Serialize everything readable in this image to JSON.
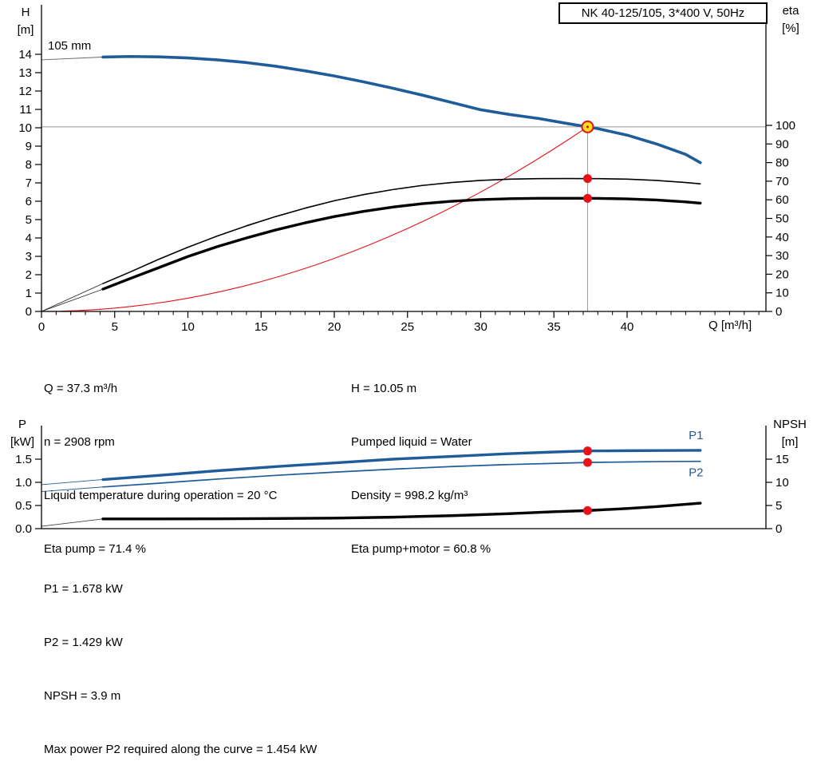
{
  "title_box": "NK 40-125/105, 3*400 V, 50Hz",
  "colors": {
    "curve_blue": "#1f5c99",
    "curve_black": "#000000",
    "marker_red": "#e8111a",
    "duty_yellow": "#ffe01a",
    "crosshair_gray": "#999999"
  },
  "axis_labels": {
    "h": [
      "H",
      "[m]"
    ],
    "eta": [
      "eta",
      "[%]"
    ],
    "q": "Q [m³/h]",
    "p": [
      "P",
      "[kW]"
    ],
    "npsh": [
      "NPSH",
      "[m]"
    ]
  },
  "info_top": {
    "left": [
      "Q = 37.3 m³/h",
      "n = 2908 rpm",
      "Liquid temperature during operation = 20 °C",
      "Eta pump = 71.4 %"
    ],
    "right": [
      "H = 10.05 m",
      "Pumped liquid = Water",
      "Density = 998.2 kg/m³",
      "Eta pump+motor = 60.8 %"
    ]
  },
  "info_bottom": [
    "P1 = 1.678 kW",
    "P2 = 1.429 kW",
    "NPSH = 3.9 m",
    "Max power P2 required along the curve = 1.454 kW"
  ],
  "chart_data": [
    {
      "type": "line",
      "name": "pump-performance-chart",
      "title": "NK 40-125/105, 3*400 V, 50Hz",
      "impeller_label": "105 mm",
      "x_axis": {
        "label": "Q [m³/h]",
        "min": 0,
        "max": 49.5,
        "major_ticks": [
          0,
          5,
          10,
          15,
          20,
          25,
          30,
          35,
          40
        ],
        "minor_step": 1
      },
      "y_left": {
        "label": "H [m]",
        "min": 0,
        "max": 16.7,
        "ticks": [
          0,
          1,
          2,
          3,
          4,
          5,
          6,
          7,
          8,
          9,
          10,
          11,
          12,
          13,
          14
        ]
      },
      "y_right": {
        "label": "eta [%]",
        "min": 0,
        "max": 100,
        "ticks": [
          0,
          10,
          20,
          30,
          40,
          50,
          60,
          70,
          80,
          90,
          100
        ]
      },
      "duty_point": {
        "q": 37.3,
        "h": 10.05,
        "show_parabola": true
      },
      "series": [
        {
          "name": "head-curve-extension",
          "axis": "left",
          "color": "#666666",
          "width": 0.9,
          "x": [
            0,
            4.2
          ],
          "y": [
            13.7,
            13.85
          ]
        },
        {
          "name": "eta-pump-extension",
          "axis": "right",
          "color": "#333333",
          "width": 0.9,
          "x": [
            0,
            4.2
          ],
          "y": [
            0,
            15
          ]
        },
        {
          "name": "eta-pump-motor-extension",
          "axis": "right",
          "color": "#333333",
          "width": 0.9,
          "x": [
            0,
            4.2
          ],
          "y": [
            0,
            12
          ]
        },
        {
          "name": "head-curve",
          "axis": "left",
          "color": "#1f5c99",
          "width": 3.6,
          "x": [
            4.2,
            6,
            8,
            10,
            12,
            14,
            16,
            18,
            20,
            22,
            24,
            26,
            28,
            30,
            32,
            34,
            36,
            37.3,
            38,
            40,
            42,
            44,
            45
          ],
          "y": [
            13.85,
            13.88,
            13.86,
            13.8,
            13.7,
            13.55,
            13.35,
            13.1,
            12.82,
            12.5,
            12.15,
            11.78,
            11.38,
            10.98,
            10.72,
            10.5,
            10.22,
            10.05,
            9.95,
            9.6,
            9.12,
            8.55,
            8.1
          ]
        },
        {
          "name": "eta-pump-curve",
          "axis": "right",
          "color": "#000000",
          "width": 1.6,
          "x": [
            4.2,
            6,
            8,
            10,
            12,
            14,
            16,
            18,
            20,
            22,
            24,
            26,
            28,
            30,
            32,
            34,
            36,
            37.3,
            38,
            40,
            42,
            44,
            45
          ],
          "y": [
            15,
            21,
            28,
            34.5,
            40.5,
            46,
            51,
            55.5,
            59.5,
            62.8,
            65.5,
            67.7,
            69.3,
            70.4,
            71.1,
            71.4,
            71.45,
            71.4,
            71.38,
            71.1,
            70.4,
            69.3,
            68.6
          ]
        },
        {
          "name": "eta-pump-motor-curve",
          "axis": "right",
          "color": "#000000",
          "width": 3.4,
          "x": [
            4.2,
            6,
            8,
            10,
            12,
            14,
            16,
            18,
            20,
            22,
            24,
            26,
            28,
            30,
            32,
            34,
            36,
            37.3,
            38,
            40,
            42,
            44,
            45
          ],
          "y": [
            12,
            17.5,
            23.5,
            29.5,
            34.8,
            39.5,
            43.8,
            47.6,
            51,
            53.8,
            56.1,
            57.9,
            59.2,
            60.1,
            60.6,
            60.8,
            60.82,
            60.8,
            60.77,
            60.5,
            59.9,
            58.9,
            58.2
          ]
        }
      ],
      "markers": [
        {
          "x": 37.3,
          "y": 10.05,
          "axis": "left",
          "style": "duty"
        },
        {
          "x": 37.3,
          "y": 71.4,
          "axis": "right",
          "style": "dot"
        },
        {
          "x": 37.3,
          "y": 60.8,
          "axis": "right",
          "style": "dot"
        }
      ]
    },
    {
      "type": "line",
      "name": "power-npsh-chart",
      "x_axis": {
        "label": "Q [m³/h]",
        "min": 0,
        "max": 49.5
      },
      "y_left": {
        "label": "P [kW]",
        "min": 0,
        "max": 2.2,
        "ticks": [
          0,
          0.5,
          1,
          1.5
        ],
        "tick_labels": [
          "0.0",
          "0.5",
          "1.0",
          "1.5"
        ]
      },
      "y_right": {
        "label": "NPSH [m]",
        "min": 0,
        "max": 22,
        "ticks": [
          0,
          5,
          10,
          15
        ]
      },
      "series": [
        {
          "name": "p1-extension",
          "axis": "left",
          "color": "#1f5c99",
          "width": 0.9,
          "x": [
            0,
            4.2
          ],
          "y": [
            0.95,
            1.06
          ]
        },
        {
          "name": "p2-extension",
          "axis": "left",
          "color": "#1f5c99",
          "width": 0.9,
          "x": [
            0,
            4.2
          ],
          "y": [
            0.8,
            0.9
          ]
        },
        {
          "name": "npsh-extension",
          "axis": "right",
          "color": "#444444",
          "width": 0.9,
          "x": [
            0,
            4.2
          ],
          "y": [
            0.5,
            2.1
          ]
        },
        {
          "name": "p1-curve",
          "axis": "left",
          "color": "#1f5c99",
          "width": 3.4,
          "x": [
            4.2,
            8,
            12,
            16,
            20,
            24,
            28,
            32,
            35,
            37.3,
            40,
            42,
            45
          ],
          "y": [
            1.06,
            1.15,
            1.25,
            1.34,
            1.42,
            1.5,
            1.56,
            1.62,
            1.655,
            1.678,
            1.683,
            1.686,
            1.69
          ]
        },
        {
          "name": "p2-curve",
          "axis": "left",
          "color": "#1f5c99",
          "width": 1.7,
          "x": [
            4.2,
            8,
            12,
            16,
            20,
            24,
            28,
            32,
            35,
            37.3,
            40,
            42,
            45
          ],
          "y": [
            0.9,
            0.98,
            1.07,
            1.15,
            1.22,
            1.285,
            1.34,
            1.385,
            1.41,
            1.429,
            1.44,
            1.447,
            1.454
          ]
        },
        {
          "name": "npsh-curve",
          "axis": "right",
          "color": "#000000",
          "width": 3.4,
          "x": [
            4.2,
            8,
            12,
            16,
            20,
            24,
            28,
            32,
            35,
            37.3,
            40,
            42,
            45
          ],
          "y": [
            2.1,
            2.1,
            2.12,
            2.18,
            2.28,
            2.48,
            2.8,
            3.25,
            3.65,
            3.9,
            4.35,
            4.75,
            5.5
          ]
        }
      ],
      "markers": [
        {
          "x": 37.3,
          "y": 1.678,
          "axis": "left",
          "style": "dot"
        },
        {
          "x": 37.3,
          "y": 1.429,
          "axis": "left",
          "style": "dot"
        },
        {
          "x": 37.3,
          "y": 3.9,
          "axis": "right",
          "style": "dot"
        }
      ],
      "labels": [
        {
          "text": "P1",
          "x": 44.2,
          "y": 1.93,
          "axis": "left",
          "color": "#1f5c99"
        },
        {
          "text": "P2",
          "x": 44.2,
          "y": 1.13,
          "axis": "left",
          "color": "#1f5c99"
        }
      ]
    }
  ]
}
